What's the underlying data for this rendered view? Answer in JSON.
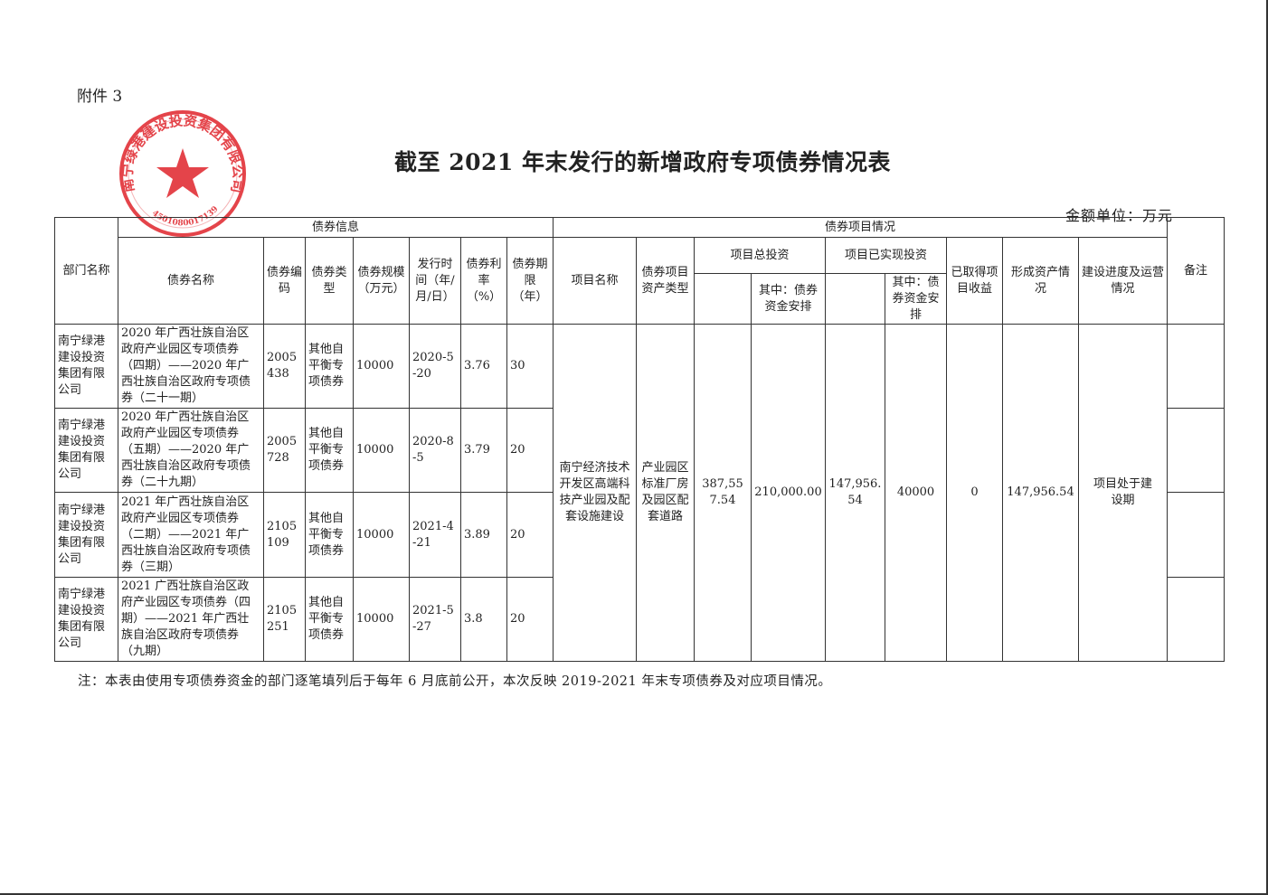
{
  "attachment_label": "附件 3",
  "title": "截至 2021 年末发行的新增政府专项债券情况表",
  "unit_label": "金额单位：万元",
  "stamp": {
    "text": "南宁绿港建设投资集团有限公司",
    "code": "4501080017139",
    "color": "#e0242b"
  },
  "headers": {
    "dept": "部门名称",
    "bond_info": "债券信息",
    "project_info": "债券项目情况",
    "remark": "备注",
    "bond_name": "债券名称",
    "bond_code": "债券编码",
    "bond_type": "债券类型",
    "bond_scale": "债券规模（万元）",
    "issue_date": "发行时间（年/月/日）",
    "rate": "债券利率（%）",
    "term": "债券期限（年）",
    "project_name": "项目名称",
    "asset_type": "债券项目资产类型",
    "total_invest": "项目总投资",
    "realized_invest": "项目已实现投资",
    "total_bond_funds": "其中：债券资金安排",
    "realized_bond_funds": "其中：债券资金安排",
    "income": "已取得项目收益",
    "assets_formed": "形成资产情况",
    "progress": "建设进度及运营情况"
  },
  "rows": [
    {
      "dept": "南宁绿港建设投资集团有限公司",
      "name": "2020 年广西壮族自治区政府产业园区专项债券（四期）——2020 年广西壮族自治区政府专项债券（二十一期）",
      "code": "2005438",
      "type": "其他自平衡专项债券",
      "scale": "10000",
      "date": "2020-5-20",
      "rate": "3.76",
      "term": "30"
    },
    {
      "dept": "南宁绿港建设投资集团有限公司",
      "name": "2020 年广西壮族自治区政府产业园区专项债券（五期）——2020 年广西壮族自治区政府专项债券（二十九期）",
      "code": "2005728",
      "type": "其他自平衡专项债券",
      "scale": "10000",
      "date": "2020-8-5",
      "rate": "3.79",
      "term": "20"
    },
    {
      "dept": "南宁绿港建设投资集团有限公司",
      "name": "2021 年广西壮族自治区政府产业园区专项债券（二期）——2021 年广西壮族自治区政府专项债券（三期）",
      "code": "2105109",
      "type": "其他自平衡专项债券",
      "scale": "10000",
      "date": "2021-4-21",
      "rate": "3.89",
      "term": "20"
    },
    {
      "dept": "南宁绿港建设投资集团有限公司",
      "name": "2021 广西壮族自治区政府产业园区专项债券（四期）——2021 年广西壮族自治区政府专项债券（九期）",
      "code": "2105251",
      "type": "其他自平衡专项债券",
      "scale": "10000",
      "date": "2021-5-27",
      "rate": "3.8",
      "term": "20"
    }
  ],
  "project": {
    "name": "南宁经济技术开发区高端科技产业园及配套设施建设",
    "asset_type": "产业园区标准厂房及园区配套道路",
    "total_invest": "387,557.54",
    "total_bond_funds": "210,000.00",
    "realized_invest": "147,956.54",
    "realized_bond_funds": "40000",
    "income": "0",
    "assets_formed": "147,956.54",
    "progress": "项目处于建设期"
  },
  "note": "注：本表由使用专项债券资金的部门逐笔填列后于每年 6 月底前公开，本次反映 2019-2021 年末专项债券及对应项目情况。"
}
